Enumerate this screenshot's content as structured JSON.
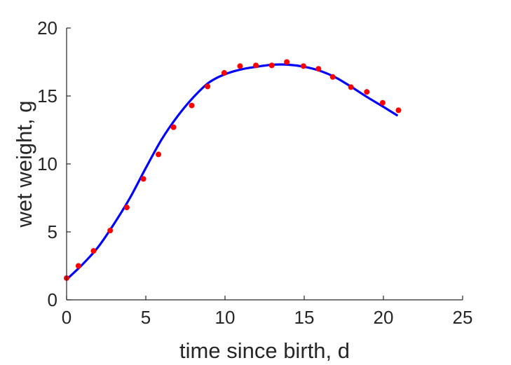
{
  "chart_data": {
    "type": "scatter",
    "xlabel": "time since birth, d",
    "ylabel": "wet weight, g",
    "xlim": [
      0,
      25
    ],
    "ylim": [
      0,
      20
    ],
    "xticks": [
      0,
      5,
      10,
      15,
      20,
      25
    ],
    "yticks": [
      0,
      5,
      10,
      15,
      20
    ],
    "grid": false,
    "box": false,
    "series": [
      {
        "kind": "points",
        "color": "#ff0000",
        "x": [
          0,
          0.75,
          1.7,
          2.75,
          3.8,
          4.85,
          5.8,
          6.75,
          7.9,
          8.9,
          9.95,
          10.95,
          11.95,
          12.95,
          13.9,
          14.95,
          15.9,
          16.8,
          17.95,
          18.95,
          19.95,
          20.95
        ],
        "y": [
          1.6,
          2.5,
          3.6,
          5.1,
          6.8,
          8.9,
          10.7,
          12.7,
          14.3,
          15.7,
          16.7,
          17.2,
          17.25,
          17.25,
          17.5,
          17.2,
          17.0,
          16.4,
          15.65,
          15.3,
          14.5,
          13.95
        ]
      },
      {
        "kind": "line",
        "color": "#0000ff",
        "x": [
          0,
          1,
          2,
          3,
          4,
          5,
          6,
          7,
          8,
          9,
          10,
          11,
          12,
          13,
          14,
          15,
          16,
          17,
          18,
          19,
          20,
          20.9
        ],
        "y": [
          1.5,
          2.6,
          3.9,
          5.6,
          7.5,
          9.7,
          11.8,
          13.5,
          14.9,
          16.0,
          16.6,
          16.95,
          17.15,
          17.3,
          17.3,
          17.15,
          16.85,
          16.35,
          15.65,
          14.9,
          14.2,
          13.55
        ]
      }
    ]
  }
}
